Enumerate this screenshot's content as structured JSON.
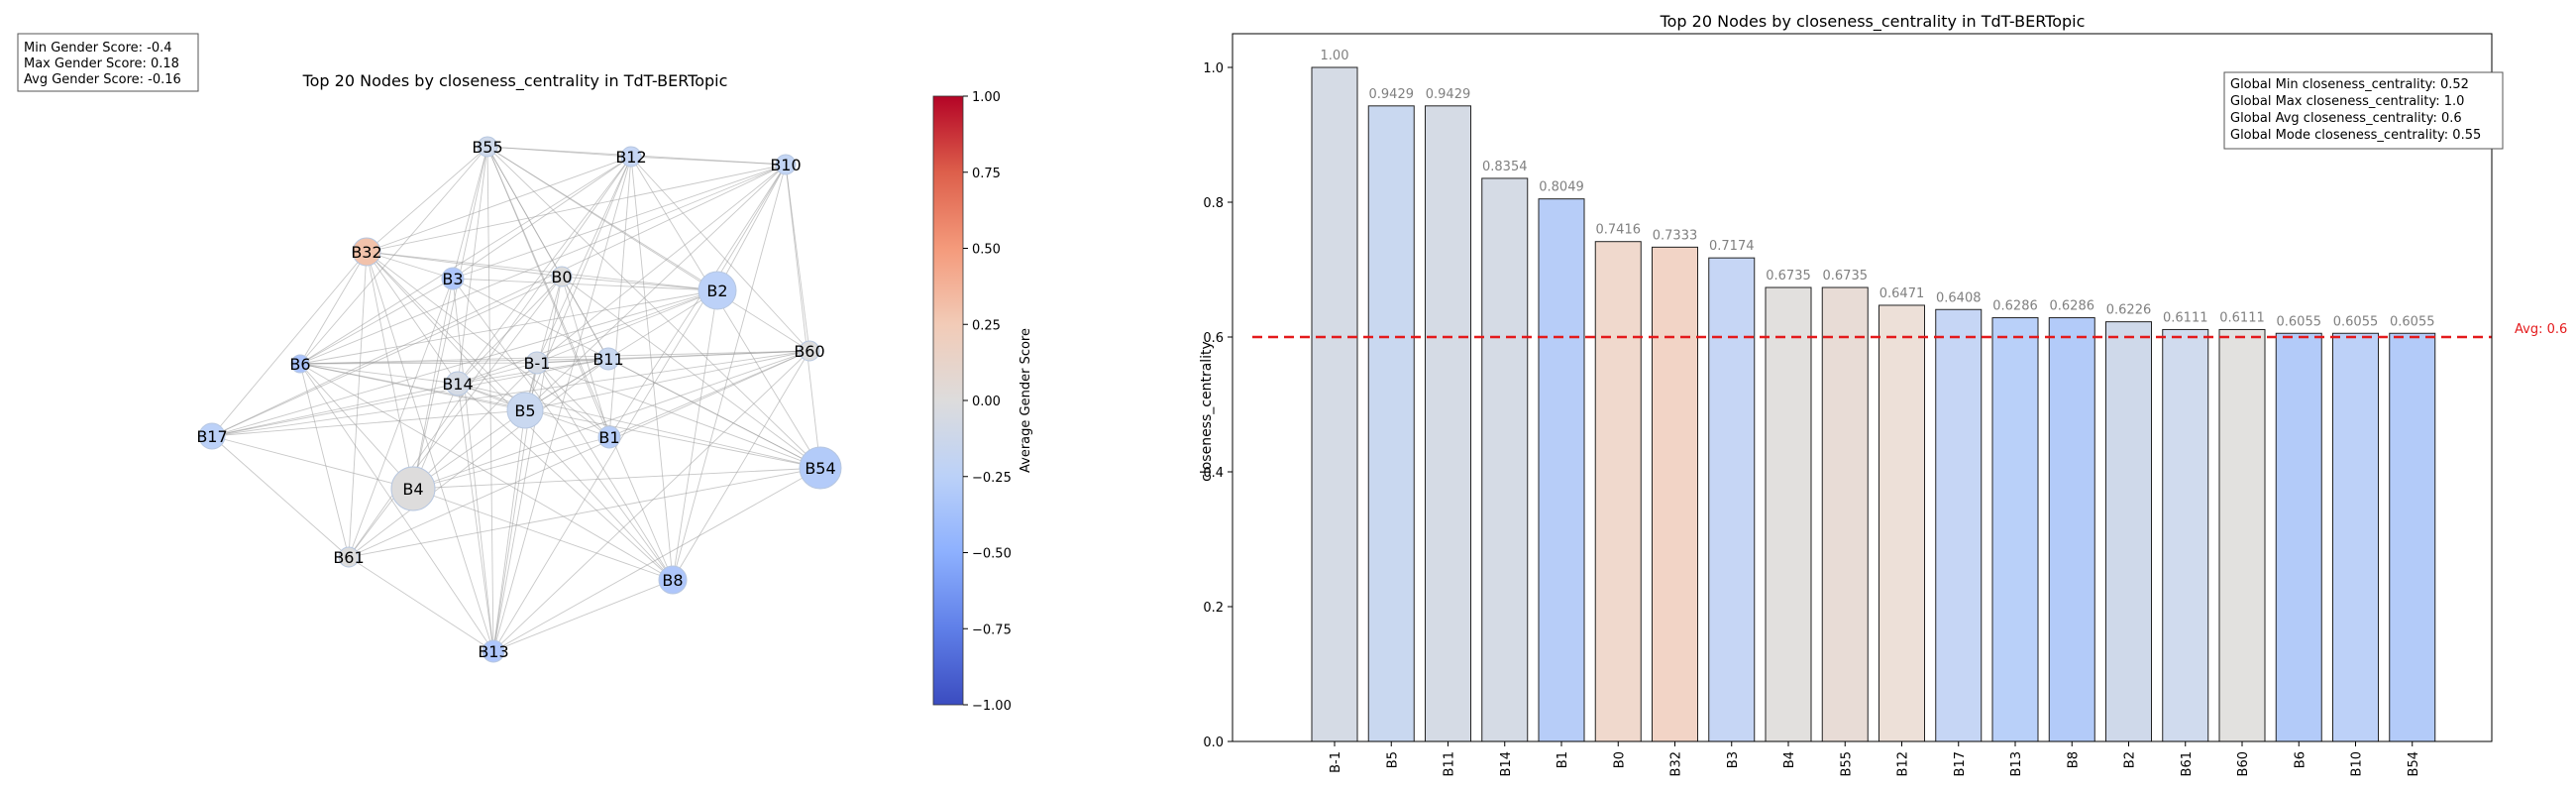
{
  "network_panel": {
    "title": "Top 20 Nodes by closeness_centrality in TdT-BERTopic",
    "stats": [
      "Min Gender Score: -0.4",
      "Max Gender Score: 0.18",
      "Avg Gender Score: -0.16"
    ],
    "colorbar": {
      "label": "Average Gender Score",
      "ticks": [
        "1.00",
        "0.75",
        "0.50",
        "0.25",
        "0.00",
        "−0.25",
        "−0.50",
        "−0.75",
        "−1.00"
      ]
    },
    "nodes": [
      {
        "name": "B55"
      },
      {
        "name": "B12"
      },
      {
        "name": "B10"
      },
      {
        "name": "B32"
      },
      {
        "name": "B3"
      },
      {
        "name": "B0"
      },
      {
        "name": "B2"
      },
      {
        "name": "B6"
      },
      {
        "name": "B-1"
      },
      {
        "name": "B11"
      },
      {
        "name": "B60"
      },
      {
        "name": "B14"
      },
      {
        "name": "B5"
      },
      {
        "name": "B17"
      },
      {
        "name": "B1"
      },
      {
        "name": "B54"
      },
      {
        "name": "B4"
      },
      {
        "name": "B61"
      },
      {
        "name": "B8"
      },
      {
        "name": "B13"
      }
    ]
  },
  "chart_data": {
    "type": "bar",
    "title": "Top 20 Nodes by closeness_centrality in TdT-BERTopic",
    "xlabel": "",
    "ylabel": "closeness_centrality",
    "ylim": [
      0,
      1.05
    ],
    "yticks": [
      "0.0",
      "0.2",
      "0.4",
      "0.6",
      "0.8",
      "1.0"
    ],
    "categories": [
      "B-1",
      "B5",
      "B11",
      "B14",
      "B1",
      "B0",
      "B32",
      "B3",
      "B4",
      "B55",
      "B12",
      "B17",
      "B13",
      "B8",
      "B2",
      "B61",
      "B60",
      "B6",
      "B10",
      "B54"
    ],
    "values": [
      1.0,
      0.9429,
      0.9429,
      0.8354,
      0.8049,
      0.7416,
      0.7333,
      0.7174,
      0.6735,
      0.6735,
      0.6471,
      0.6408,
      0.6286,
      0.6286,
      0.6226,
      0.6111,
      0.6111,
      0.6055,
      0.6055,
      0.6055
    ],
    "value_labels": [
      "1.00",
      "0.9429",
      "0.9429",
      "0.8354",
      "0.8049",
      "0.7416",
      "0.7333",
      "0.7174",
      "0.6735",
      "0.6735",
      "0.6471",
      "0.6408",
      "0.6286",
      "0.6286",
      "0.6226",
      "0.6111",
      "0.6111",
      "0.6055",
      "0.6055",
      "0.6055"
    ],
    "bar_colors": [
      "#d5dbe5",
      "#c9d8f0",
      "#d5dbe5",
      "#d5dbe5",
      "#b7cdf8",
      "#f0d9cd",
      "#f2d4c6",
      "#c6d6f5",
      "#e2e0de",
      "#e8dcd6",
      "#ede0d8",
      "#c6d6f5",
      "#b9d0f9",
      "#b3cbf9",
      "#cfd9ea",
      "#d0dbee",
      "#e2e1df",
      "#b3cbf9",
      "#bdd1f8",
      "#b3cbf9"
    ],
    "avg_line": {
      "value": 0.6,
      "label": "Avg: 0.6",
      "color": "#e41a1c"
    },
    "stats_box": [
      "Global Min closeness_centrality: 0.52",
      "Global Max closeness_centrality: 1.0",
      "Global Avg closeness_centrality: 0.6",
      "Global Mode closeness_centrality: 0.55"
    ],
    "grid": false,
    "legend": "none"
  }
}
